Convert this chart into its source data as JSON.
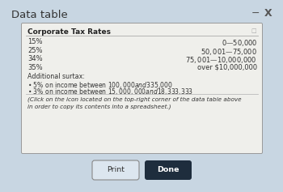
{
  "title": "Data table",
  "bg_color": "#c8d6e2",
  "table_bg": "#efefeb",
  "table_border": "#999999",
  "table_title": "Corporate Tax Rates",
  "rates": [
    "15%",
    "25%",
    "34%",
    "35%"
  ],
  "ranges": [
    "$0—$50,000",
    "$50,001—$75,000",
    "$75,001—$10,000,000",
    "over $10,000,000"
  ],
  "additional_surtax": "Additional surtax:",
  "bullet1": "• 5% on income between $100,000 and $335,000",
  "bullet2": "• 3% on income between $15,000,000 and $18,333,333",
  "note": "(Click on the icon located on the top-right corner of the data table above\nin order to copy its contents into a spreadsheet.)",
  "btn_print_label": "Print",
  "btn_done_label": "Done",
  "btn_print_color": "#dce6ef",
  "btn_done_color": "#1e2d3d",
  "btn_done_text_color": "#ffffff",
  "btn_print_text_color": "#333333",
  "title_color": "#333333",
  "text_color": "#333333",
  "header_line_color": "#aaaaaa",
  "note_line_color": "#bbbbbb",
  "minus_x_color": "#555555",
  "icon_color": "#aaaaaa",
  "figw": 3.5,
  "figh": 2.37,
  "dpi": 100
}
